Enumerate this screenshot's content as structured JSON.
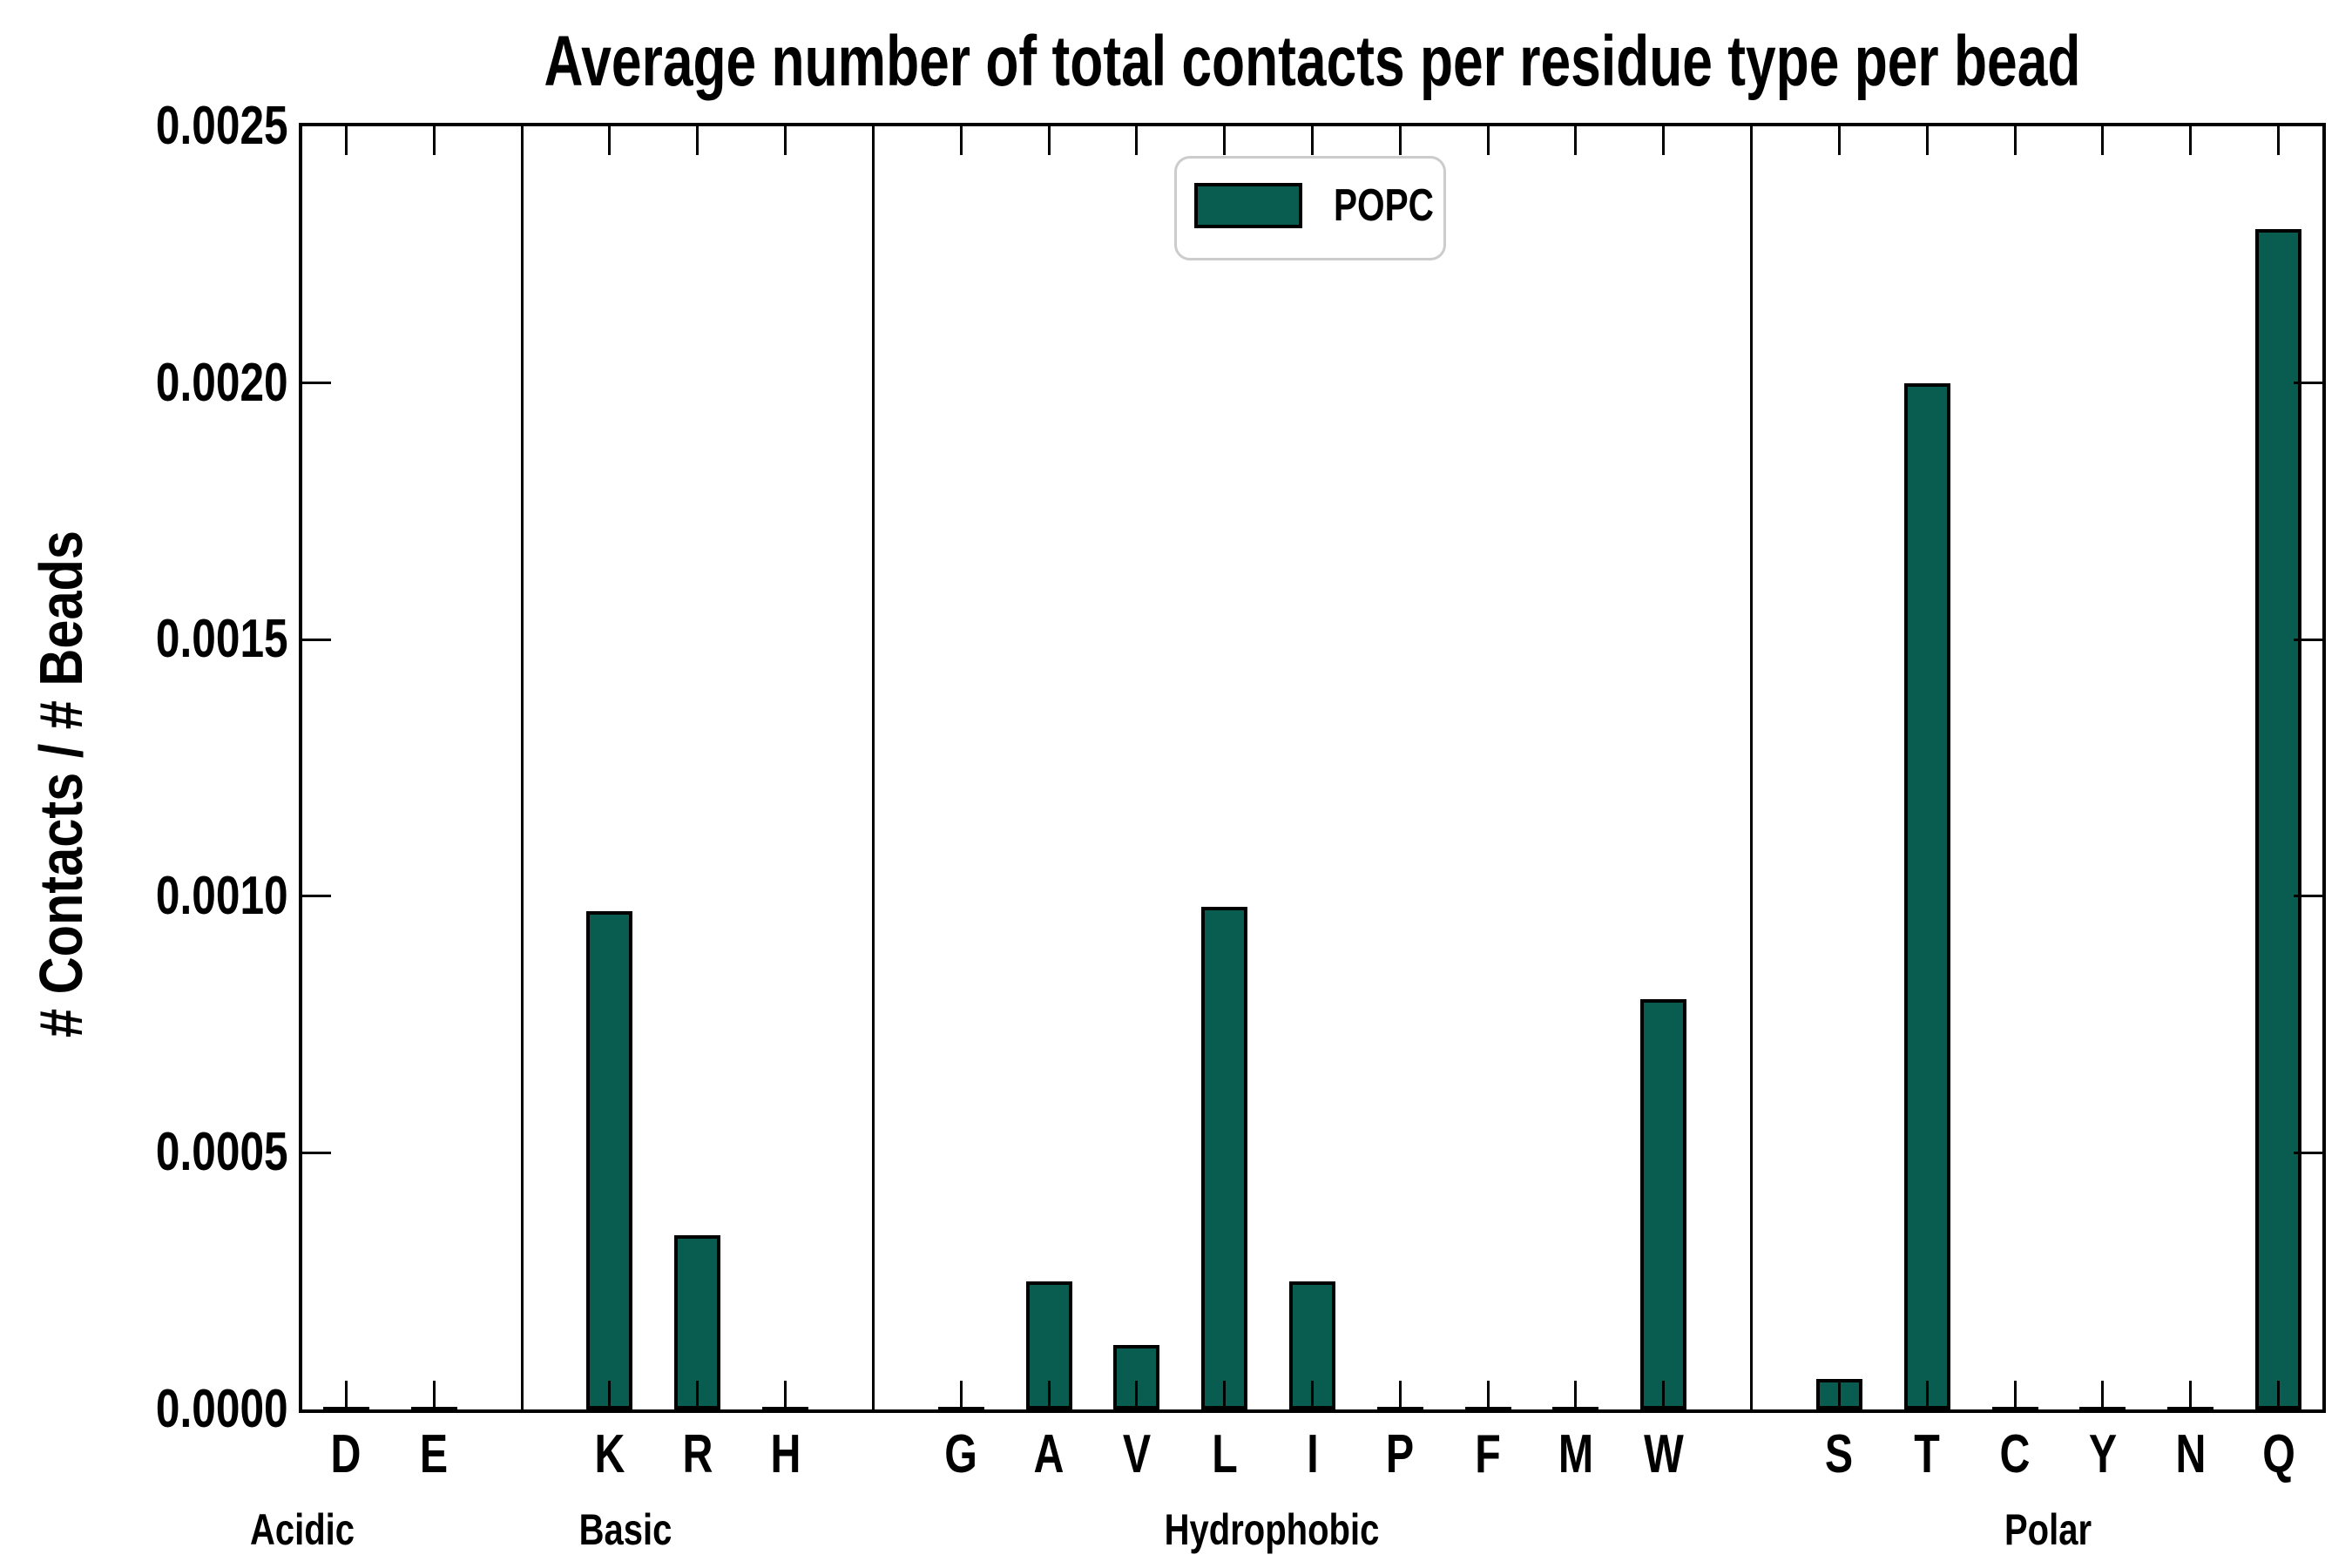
{
  "title": "Average number of total contacts per residue type per bead",
  "y_axis": {
    "label": "# Contacts / # Beads",
    "tick_labels": [
      "0.0000",
      "0.0005",
      "0.0010",
      "0.0015",
      "0.0020",
      "0.0025"
    ]
  },
  "legend": {
    "label": "POPC",
    "color": "#085d50"
  },
  "chart_data": {
    "type": "bar",
    "title": "Average number of total contacts per residue type per bead",
    "xlabel": "",
    "ylabel": "# Contacts / # Beads",
    "ylim": [
      0,
      0.0025
    ],
    "grid": false,
    "legend_position": "upper center inside",
    "bar_fill_color": "#085d50",
    "bar_edge_color": "#000000",
    "categories": [
      "D",
      "E",
      "K",
      "R",
      "H",
      "G",
      "A",
      "V",
      "L",
      "I",
      "P",
      "F",
      "M",
      "W",
      "S",
      "T",
      "C",
      "Y",
      "N",
      "Q"
    ],
    "groups": [
      {
        "label": "Acidic",
        "categories": [
          "D",
          "E"
        ]
      },
      {
        "label": "Basic",
        "categories": [
          "K",
          "R",
          "H"
        ]
      },
      {
        "label": "Hydrophobic",
        "categories": [
          "G",
          "A",
          "V",
          "L",
          "I",
          "P",
          "F",
          "M",
          "W"
        ]
      },
      {
        "label": "Polar",
        "categories": [
          "S",
          "T",
          "C",
          "Y",
          "N",
          "Q"
        ]
      }
    ],
    "series": [
      {
        "name": "POPC",
        "color": "#085d50",
        "values": [
          3e-06,
          3e-06,
          0.00097,
          0.00034,
          3e-06,
          3e-06,
          0.00025,
          0.000125,
          0.00098,
          0.00025,
          3e-06,
          3e-06,
          3e-06,
          0.0008,
          6e-05,
          0.002,
          3e-06,
          3e-06,
          3e-06,
          0.0023
        ]
      }
    ]
  }
}
